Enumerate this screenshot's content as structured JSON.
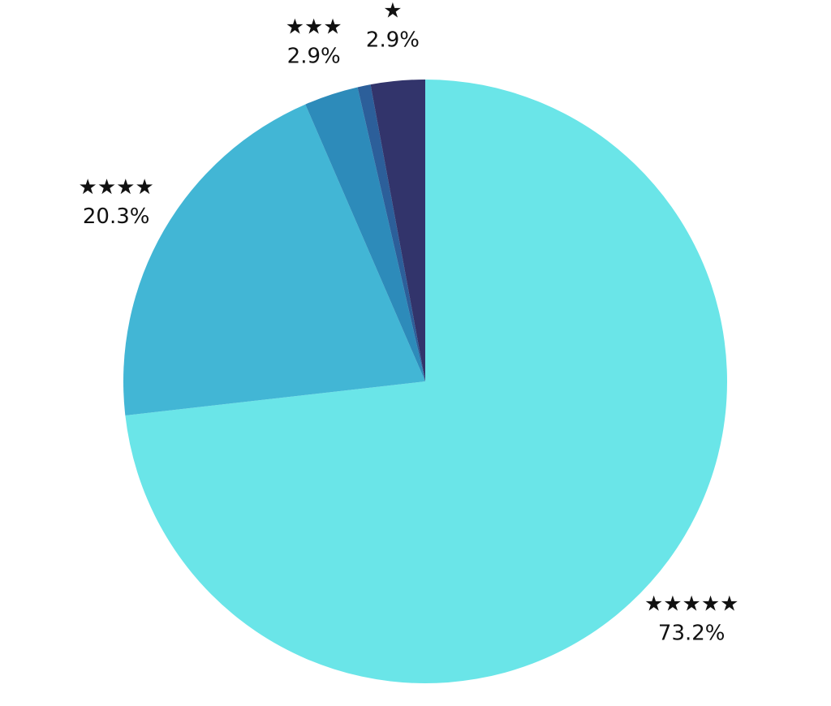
{
  "chart_data": {
    "type": "pie",
    "categories": [
      "★★★★★",
      "★★★★",
      "★★★",
      null,
      "★"
    ],
    "values": [
      73.2,
      20.3,
      2.9,
      0.7,
      2.9
    ],
    "value_labels": [
      "73.2%",
      "20.3%",
      "2.9%",
      null,
      "2.9%"
    ],
    "colors": [
      "#6ae5e8",
      "#42b6d5",
      "#2d8bba",
      "#2c5f9a",
      "#32346b"
    ]
  }
}
